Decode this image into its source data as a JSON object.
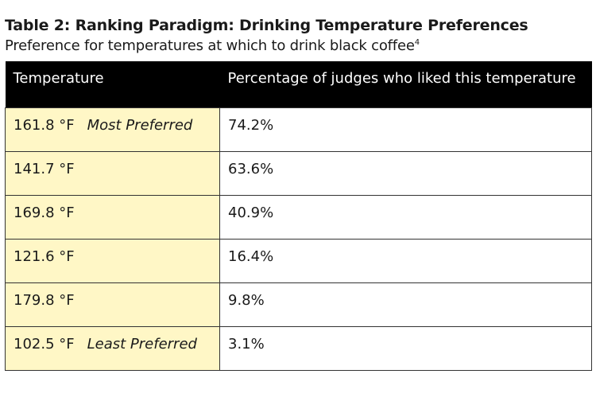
{
  "title": "Table 2: Ranking Paradigm: Drinking Temperature Preferences",
  "subtitle": "Preference for temperatures at which to drink black coffee",
  "subtitle_footnote": "4",
  "colors": {
    "header_bg": "#000000",
    "header_text": "#ffffff",
    "temperature_cell_bg": "#fff7c6",
    "border": "#333333"
  },
  "table": {
    "headers": [
      "Temperature",
      "Percentage of judges who liked this temperature"
    ],
    "rows": [
      {
        "temperature": "161.8 °F",
        "label": "Most Preferred",
        "percentage": "74.2%"
      },
      {
        "temperature": "141.7 °F",
        "label": "",
        "percentage": "63.6%"
      },
      {
        "temperature": "169.8 °F",
        "label": "",
        "percentage": "40.9%"
      },
      {
        "temperature": "121.6 °F",
        "label": "",
        "percentage": "16.4%"
      },
      {
        "temperature": "179.8 °F",
        "label": "",
        "percentage": "9.8%"
      },
      {
        "temperature": "102.5 °F",
        "label": "Least Preferred",
        "percentage": "3.1%"
      }
    ]
  }
}
